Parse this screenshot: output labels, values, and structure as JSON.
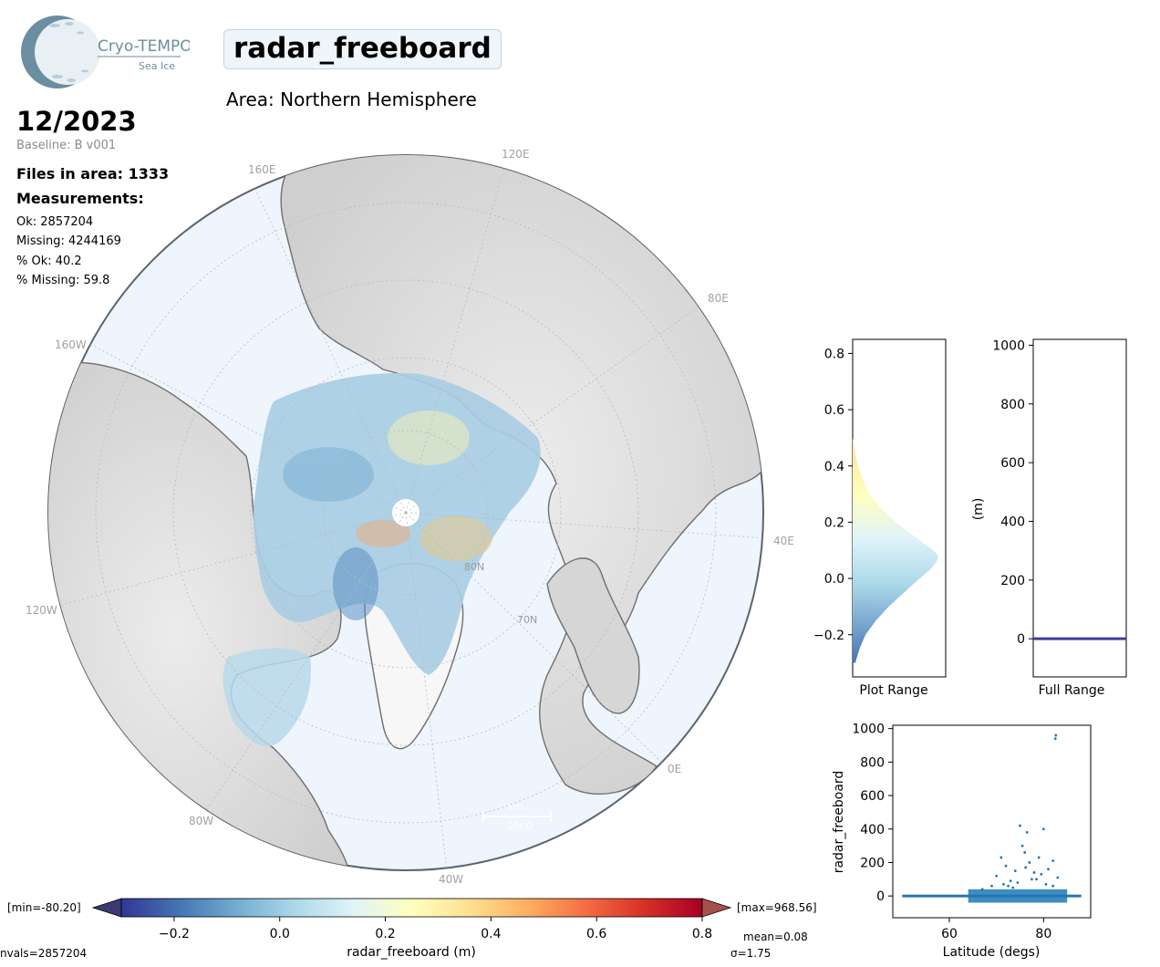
{
  "logo": {
    "name": "Cryo-TEMPO",
    "subtitle": "Sea Ice"
  },
  "header": {
    "title": "radar_freeboard",
    "area": "Area: Northern Hemisphere",
    "date": "12/2023",
    "baseline": "Baseline: B v001"
  },
  "stats": {
    "files": "Files in area: 1333",
    "measurements_title": "Measurements:",
    "lines": [
      "Ok: 2857204",
      "Missing: 4244169",
      "% Ok: 40.2",
      "% Missing: 59.8"
    ]
  },
  "map": {
    "lon_labels": [
      "160E",
      "120E",
      "80E",
      "40E",
      "0E",
      "40W",
      "80W",
      "120W",
      "160W"
    ],
    "lat_labels": [
      "80N",
      "70N"
    ],
    "scale_unit": "km",
    "scale_value": "1000",
    "colors": {
      "ocean": "#eef5fd",
      "land": "#dcdcdc",
      "coast": "#6e6e6e"
    }
  },
  "chart_data": [
    {
      "type": "area",
      "panel": "histogram",
      "xlabel": "Plot Range",
      "ylabel": "",
      "ylim": [
        -0.35,
        0.85
      ],
      "yticks": [
        -0.2,
        0.0,
        0.2,
        0.4,
        0.6,
        0.8
      ],
      "y": [
        -0.3,
        -0.25,
        -0.2,
        -0.15,
        -0.1,
        -0.05,
        0.0,
        0.03,
        0.06,
        0.08,
        0.1,
        0.15,
        0.2,
        0.25,
        0.3,
        0.35,
        0.4,
        0.45,
        0.5
      ],
      "frequency": [
        0.03,
        0.08,
        0.15,
        0.27,
        0.42,
        0.6,
        0.78,
        0.9,
        0.98,
        1.0,
        0.94,
        0.72,
        0.5,
        0.33,
        0.2,
        0.12,
        0.06,
        0.025,
        0.0
      ]
    },
    {
      "type": "bar",
      "panel": "full-range",
      "xlabel": "Full Range",
      "ylabel": "(m)",
      "ylim": [
        -130,
        1020
      ],
      "yticks": [
        0,
        200,
        400,
        600,
        800,
        1000
      ],
      "values": [
        0.08
      ]
    },
    {
      "type": "scatter",
      "panel": "scatter",
      "xlabel": "Latitude (degs)",
      "ylabel": "radar_freeboard",
      "xlim": [
        48,
        90
      ],
      "ylim": [
        -130,
        1020
      ],
      "xticks": [
        60,
        80
      ],
      "yticks": [
        0,
        200,
        400,
        600,
        800,
        1000
      ],
      "points": [
        [
          70,
          120
        ],
        [
          71,
          230
        ],
        [
          72,
          180
        ],
        [
          73,
          90
        ],
        [
          74,
          150
        ],
        [
          75,
          420
        ],
        [
          75.5,
          300
        ],
        [
          76,
          260
        ],
        [
          76.5,
          380
        ],
        [
          77,
          200
        ],
        [
          78,
          140
        ],
        [
          79,
          230
        ],
        [
          80,
          400
        ],
        [
          81,
          160
        ],
        [
          82,
          210
        ],
        [
          82.5,
          940
        ],
        [
          82.6,
          960
        ],
        [
          78.5,
          100
        ],
        [
          74.5,
          80
        ],
        [
          69,
          60
        ],
        [
          67,
          40
        ],
        [
          72.5,
          60
        ],
        [
          80.5,
          70
        ],
        [
          83,
          110
        ],
        [
          79.5,
          130
        ],
        [
          77.5,
          100
        ],
        [
          73.5,
          50
        ],
        [
          76.2,
          170
        ],
        [
          71.5,
          70
        ],
        [
          82,
          60
        ]
      ]
    },
    {
      "type": "heatmap",
      "panel": "colorbar",
      "xlabel": "radar_freeboard (m)",
      "range": [
        -0.3,
        0.8
      ],
      "ticks": [
        -0.2,
        0.0,
        0.2,
        0.4,
        0.6,
        0.8
      ],
      "min_label": "[min=-80.20]",
      "max_label": "[max=968.56]",
      "nvals": "nvals=2857204",
      "mean": "mean=0.08",
      "sigma": "σ=1.75",
      "colors": [
        "#313695",
        "#4575b4",
        "#74add1",
        "#abd9e9",
        "#e0f3f8",
        "#ffffbf",
        "#fee090",
        "#fdae61",
        "#f46d43",
        "#d73027",
        "#a50026"
      ]
    }
  ]
}
